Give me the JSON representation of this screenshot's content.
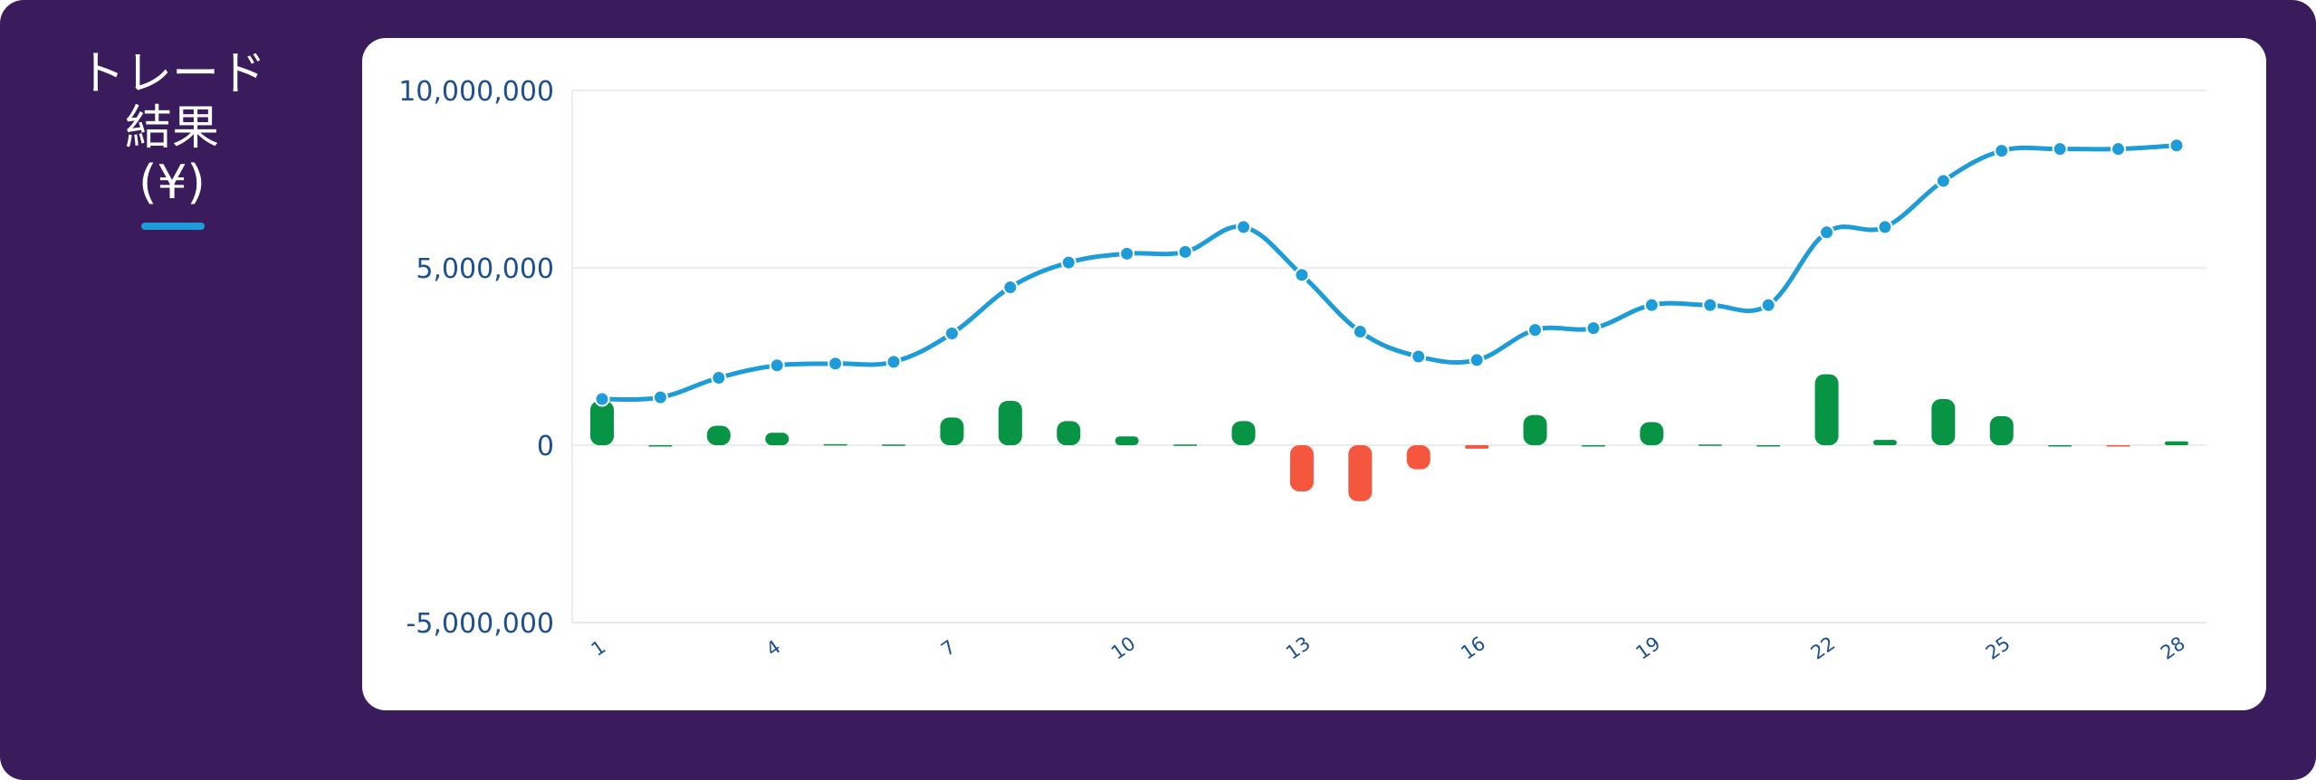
{
  "title": {
    "lines": [
      "トレード",
      "結果",
      "(¥)"
    ]
  },
  "colors": {
    "background": "#3a1c5c",
    "card": "#ffffff",
    "line": "#1e9cd7",
    "positive_bar": "#079545",
    "negative_bar": "#f4573d",
    "axis_text": "#1d4f91",
    "grid": "#e6e6ea"
  },
  "chart_data": {
    "type": "bar+line",
    "title": "トレード結果 (¥)",
    "xlabel": "",
    "ylabel": "",
    "ylim": [
      -5000000,
      10000000
    ],
    "yticks": [
      {
        "value": 10000000,
        "label": "10,000,000"
      },
      {
        "value": 5000000,
        "label": "5,000,000"
      },
      {
        "value": 0,
        "label": "0"
      },
      {
        "value": -5000000,
        "label": "-5,000,000"
      }
    ],
    "xticks": [
      1,
      4,
      7,
      10,
      13,
      16,
      19,
      22,
      25,
      28
    ],
    "x": [
      1,
      2,
      3,
      4,
      5,
      6,
      7,
      8,
      9,
      10,
      11,
      12,
      13,
      14,
      15,
      16,
      17,
      18,
      19,
      20,
      21,
      22,
      23,
      24,
      25,
      26,
      27,
      28
    ],
    "grid": true,
    "legend": "none",
    "series": [
      {
        "kind": "bar",
        "values": [
          1250000,
          0,
          550000,
          350000,
          30000,
          20000,
          780000,
          1250000,
          680000,
          250000,
          20000,
          680000,
          -1300000,
          -1580000,
          -680000,
          -100000,
          850000,
          0,
          650000,
          20000,
          0,
          2000000,
          150000,
          1300000,
          820000,
          0,
          -30000,
          110000
        ]
      },
      {
        "kind": "line",
        "values": [
          1300000,
          1350000,
          1900000,
          2250000,
          2300000,
          2350000,
          3150000,
          4450000,
          5150000,
          5400000,
          5450000,
          6150000,
          4800000,
          3200000,
          2500000,
          2400000,
          3250000,
          3300000,
          3950000,
          3950000,
          3950000,
          6000000,
          6150000,
          7450000,
          8300000,
          8350000,
          8350000,
          8450000
        ]
      }
    ]
  }
}
